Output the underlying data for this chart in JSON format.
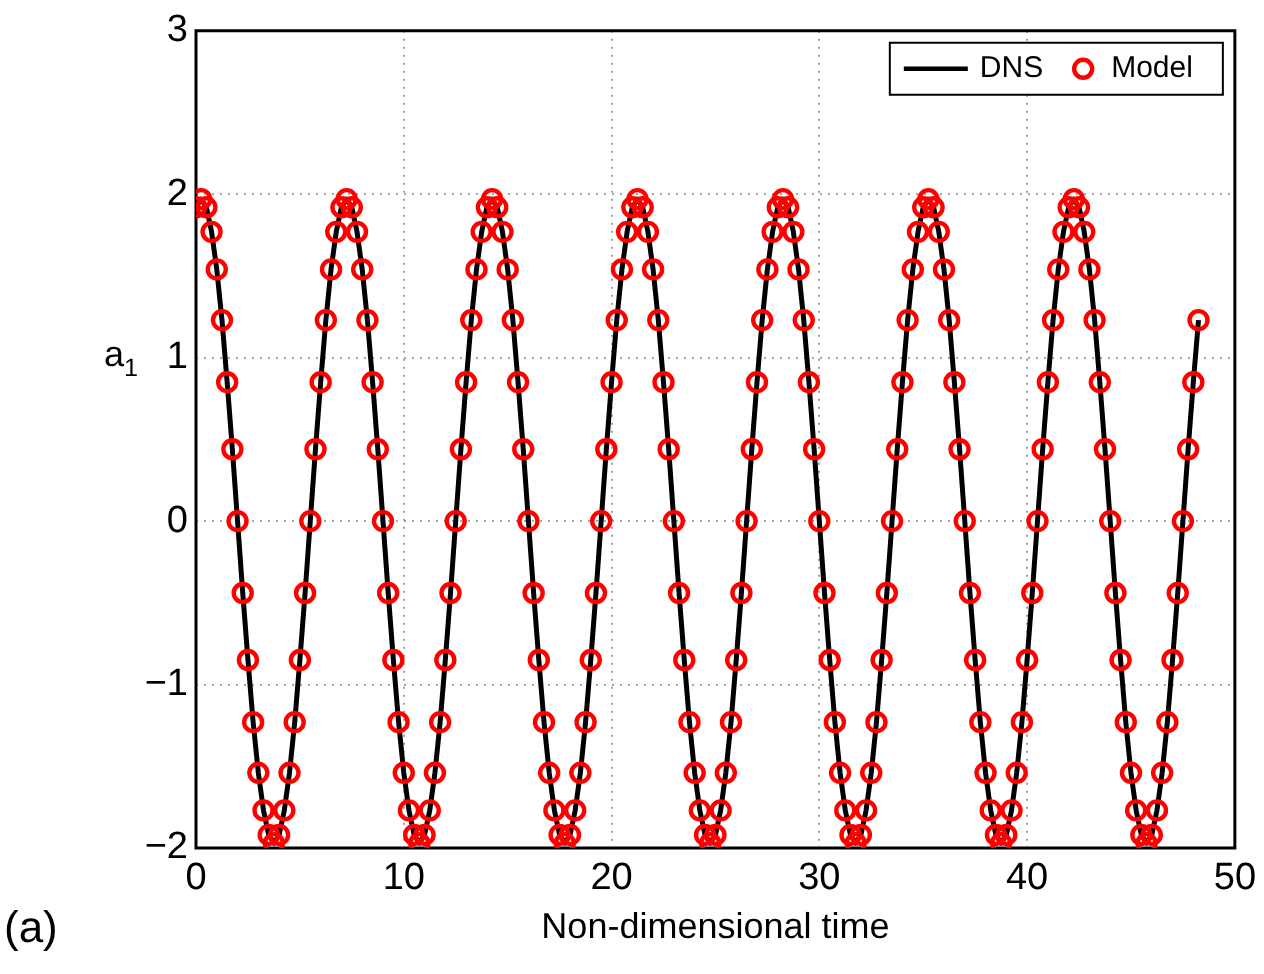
{
  "chart_data": {
    "type": "line",
    "xlabel": "Non-dimensional time",
    "ylabel": "a$_{1}$",
    "annotations": [
      "(a)"
    ],
    "x": [
      0,
      0.25,
      0.5,
      0.75,
      1,
      1.25,
      1.5,
      1.75,
      2,
      2.25,
      2.5,
      2.75,
      3,
      3.25,
      3.5,
      3.75,
      4,
      4.25,
      4.5,
      4.75,
      5,
      5.25,
      5.5,
      5.75,
      6,
      6.25,
      6.5,
      6.75,
      7,
      7.25,
      7.5,
      7.75,
      8,
      8.25,
      8.5,
      8.75,
      9,
      9.25,
      9.5,
      9.75,
      10,
      10.25,
      10.5,
      10.75,
      11,
      11.25,
      11.5,
      11.75,
      12,
      12.25,
      12.5,
      12.75,
      13,
      13.25,
      13.5,
      13.75,
      14,
      14.25,
      14.5,
      14.75,
      15,
      15.25,
      15.5,
      15.75,
      16,
      16.25,
      16.5,
      16.75,
      17,
      17.25,
      17.5,
      17.75,
      18,
      18.25,
      18.5,
      18.75,
      19,
      19.25,
      19.5,
      19.75,
      20,
      20.25,
      20.5,
      20.75,
      21,
      21.25,
      21.5,
      21.75,
      22,
      22.25,
      22.5,
      22.75,
      23,
      23.25,
      23.5,
      23.75,
      24,
      24.25,
      24.5,
      24.75,
      25,
      25.25,
      25.5,
      25.75,
      26,
      26.25,
      26.5,
      26.75,
      27,
      27.25,
      27.5,
      27.75,
      28,
      28.25,
      28.5,
      28.75,
      29,
      29.25,
      29.5,
      29.75,
      30,
      30.25,
      30.5,
      30.75,
      31,
      31.25,
      31.5,
      31.75,
      32,
      32.25,
      32.5,
      32.75,
      33,
      33.25,
      33.5,
      33.75,
      34,
      34.25,
      34.5,
      34.75,
      35,
      35.25,
      35.5,
      35.75,
      36,
      36.25,
      36.5,
      36.75,
      37,
      37.25,
      37.5,
      37.75,
      38,
      38.25,
      38.5,
      38.75,
      39,
      39.25,
      39.5,
      39.75,
      40,
      40.25,
      40.5,
      40.75,
      41,
      41.25,
      41.5,
      41.75,
      42,
      42.25,
      42.5,
      42.75,
      43,
      43.25,
      43.5,
      43.75,
      44,
      44.25,
      44.5,
      44.75,
      45,
      45.25,
      45.5,
      45.75,
      46,
      46.25,
      46.5,
      46.75,
      47,
      47.25,
      47.5,
      47.75,
      48,
      48.25
    ],
    "series": [
      {
        "name": "DNS",
        "color": "#000000",
        "marker": "none",
        "values": [
          1.92,
          1.97,
          1.92,
          1.77,
          1.54,
          1.23,
          0.85,
          0.44,
          0,
          -0.44,
          -0.85,
          -1.23,
          -1.54,
          -1.77,
          -1.92,
          -1.97,
          -1.92,
          -1.77,
          -1.54,
          -1.23,
          -0.85,
          -0.44,
          0,
          0.44,
          0.85,
          1.23,
          1.54,
          1.77,
          1.92,
          1.97,
          1.92,
          1.77,
          1.54,
          1.23,
          0.85,
          0.44,
          0,
          -0.44,
          -0.85,
          -1.23,
          -1.54,
          -1.77,
          -1.92,
          -1.97,
          -1.92,
          -1.77,
          -1.54,
          -1.23,
          -0.85,
          -0.44,
          0,
          0.44,
          0.85,
          1.23,
          1.54,
          1.77,
          1.92,
          1.97,
          1.92,
          1.77,
          1.54,
          1.23,
          0.85,
          0.44,
          0,
          -0.44,
          -0.85,
          -1.23,
          -1.54,
          -1.77,
          -1.92,
          -1.97,
          -1.92,
          -1.77,
          -1.54,
          -1.23,
          -0.85,
          -0.44,
          0,
          0.44,
          0.85,
          1.23,
          1.54,
          1.77,
          1.92,
          1.97,
          1.92,
          1.77,
          1.54,
          1.23,
          0.85,
          0.44,
          0,
          -0.44,
          -0.85,
          -1.23,
          -1.54,
          -1.77,
          -1.92,
          -1.97,
          -1.92,
          -1.77,
          -1.54,
          -1.23,
          -0.85,
          -0.44,
          0,
          0.44,
          0.85,
          1.23,
          1.54,
          1.77,
          1.92,
          1.97,
          1.92,
          1.77,
          1.54,
          1.23,
          0.85,
          0.44,
          0,
          -0.44,
          -0.85,
          -1.23,
          -1.54,
          -1.77,
          -1.92,
          -1.97,
          -1.92,
          -1.77,
          -1.54,
          -1.23,
          -0.85,
          -0.44,
          0,
          0.44,
          0.85,
          1.23,
          1.54,
          1.77,
          1.92,
          1.97,
          1.92,
          1.77,
          1.54,
          1.23,
          0.85,
          0.44,
          0,
          -0.44,
          -0.85,
          -1.23,
          -1.54,
          -1.77,
          -1.92,
          -1.97,
          -1.92,
          -1.77,
          -1.54,
          -1.23,
          -0.85,
          -0.44,
          0,
          0.44,
          0.85,
          1.23,
          1.54,
          1.77,
          1.92,
          1.97,
          1.92,
          1.77,
          1.54,
          1.23,
          0.85,
          0.44,
          0,
          -0.44,
          -0.85,
          -1.23,
          -1.54,
          -1.77,
          -1.92,
          -1.97,
          -1.92,
          -1.77,
          -1.54,
          -1.23,
          -0.85,
          -0.44,
          0,
          0.44,
          0.85,
          1.23
        ]
      },
      {
        "name": "Model",
        "type": "scatter",
        "color": "#ff0000",
        "marker": "circle",
        "values": [
          1.92,
          1.97,
          1.92,
          1.77,
          1.54,
          1.23,
          0.85,
          0.44,
          0,
          -0.44,
          -0.85,
          -1.23,
          -1.54,
          -1.77,
          -1.92,
          -1.97,
          -1.92,
          -1.77,
          -1.54,
          -1.23,
          -0.85,
          -0.44,
          0,
          0.44,
          0.85,
          1.23,
          1.54,
          1.77,
          1.92,
          1.97,
          1.92,
          1.77,
          1.54,
          1.23,
          0.85,
          0.44,
          0,
          -0.44,
          -0.85,
          -1.23,
          -1.54,
          -1.77,
          -1.92,
          -1.97,
          -1.92,
          -1.77,
          -1.54,
          -1.23,
          -0.85,
          -0.44,
          0,
          0.44,
          0.85,
          1.23,
          1.54,
          1.77,
          1.92,
          1.97,
          1.92,
          1.77,
          1.54,
          1.23,
          0.85,
          0.44,
          0,
          -0.44,
          -0.85,
          -1.23,
          -1.54,
          -1.77,
          -1.92,
          -1.97,
          -1.92,
          -1.77,
          -1.54,
          -1.23,
          -0.85,
          -0.44,
          0,
          0.44,
          0.85,
          1.23,
          1.54,
          1.77,
          1.92,
          1.97,
          1.92,
          1.77,
          1.54,
          1.23,
          0.85,
          0.44,
          0,
          -0.44,
          -0.85,
          -1.23,
          -1.54,
          -1.77,
          -1.92,
          -1.97,
          -1.92,
          -1.77,
          -1.54,
          -1.23,
          -0.85,
          -0.44,
          0,
          0.44,
          0.85,
          1.23,
          1.54,
          1.77,
          1.92,
          1.97,
          1.92,
          1.77,
          1.54,
          1.23,
          0.85,
          0.44,
          0,
          -0.44,
          -0.85,
          -1.23,
          -1.54,
          -1.77,
          -1.92,
          -1.97,
          -1.92,
          -1.77,
          -1.54,
          -1.23,
          -0.85,
          -0.44,
          0,
          0.44,
          0.85,
          1.23,
          1.54,
          1.77,
          1.92,
          1.97,
          1.92,
          1.77,
          1.54,
          1.23,
          0.85,
          0.44,
          0,
          -0.44,
          -0.85,
          -1.23,
          -1.54,
          -1.77,
          -1.92,
          -1.97,
          -1.92,
          -1.77,
          -1.54,
          -1.23,
          -0.85,
          -0.44,
          0,
          0.44,
          0.85,
          1.23,
          1.54,
          1.77,
          1.92,
          1.97,
          1.92,
          1.77,
          1.54,
          1.23,
          0.85,
          0.44,
          0,
          -0.44,
          -0.85,
          -1.23,
          -1.54,
          -1.77,
          -1.92,
          -1.97,
          -1.92,
          -1.77,
          -1.54,
          -1.23,
          -0.85,
          -0.44,
          0,
          0.44,
          0.85,
          1.23
        ]
      }
    ],
    "xlim": [
      0,
      50
    ],
    "xticks": [
      0,
      10,
      20,
      30,
      40,
      50
    ],
    "ylim": [
      -2,
      3
    ],
    "yticks": [
      {
        "value": -2,
        "label": "−2"
      },
      {
        "value": -1,
        "label": "−1"
      },
      0,
      1,
      2,
      3
    ],
    "grid": true,
    "legend": "top right",
    "line_style": "solid"
  }
}
